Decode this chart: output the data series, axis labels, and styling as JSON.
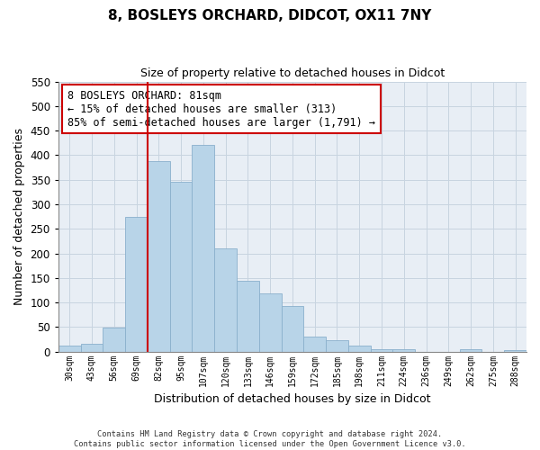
{
  "title": "8, BOSLEYS ORCHARD, DIDCOT, OX11 7NY",
  "subtitle": "Size of property relative to detached houses in Didcot",
  "xlabel": "Distribution of detached houses by size in Didcot",
  "ylabel": "Number of detached properties",
  "bar_labels": [
    "30sqm",
    "43sqm",
    "56sqm",
    "69sqm",
    "82sqm",
    "95sqm",
    "107sqm",
    "120sqm",
    "133sqm",
    "146sqm",
    "159sqm",
    "172sqm",
    "185sqm",
    "198sqm",
    "211sqm",
    "224sqm",
    "236sqm",
    "249sqm",
    "262sqm",
    "275sqm",
    "288sqm"
  ],
  "bar_values": [
    12,
    15,
    48,
    275,
    388,
    346,
    420,
    211,
    145,
    118,
    93,
    31,
    23,
    12,
    5,
    5,
    0,
    0,
    4,
    0,
    3
  ],
  "bar_color": "#b8d4e8",
  "bar_edge_color": "#8ab0cc",
  "property_line_idx": 4,
  "property_line_color": "#cc0000",
  "ylim": [
    0,
    550
  ],
  "yticks": [
    0,
    50,
    100,
    150,
    200,
    250,
    300,
    350,
    400,
    450,
    500,
    550
  ],
  "annotation_title": "8 BOSLEYS ORCHARD: 81sqm",
  "annotation_line1": "← 15% of detached houses are smaller (313)",
  "annotation_line2": "85% of semi-detached houses are larger (1,791) →",
  "annotation_box_color": "#ffffff",
  "annotation_box_edge": "#cc0000",
  "footer_line1": "Contains HM Land Registry data © Crown copyright and database right 2024.",
  "footer_line2": "Contains public sector information licensed under the Open Government Licence v3.0.",
  "background_color": "#ffffff",
  "plot_bg_color": "#e8eef5",
  "grid_color": "#c8d4e0"
}
